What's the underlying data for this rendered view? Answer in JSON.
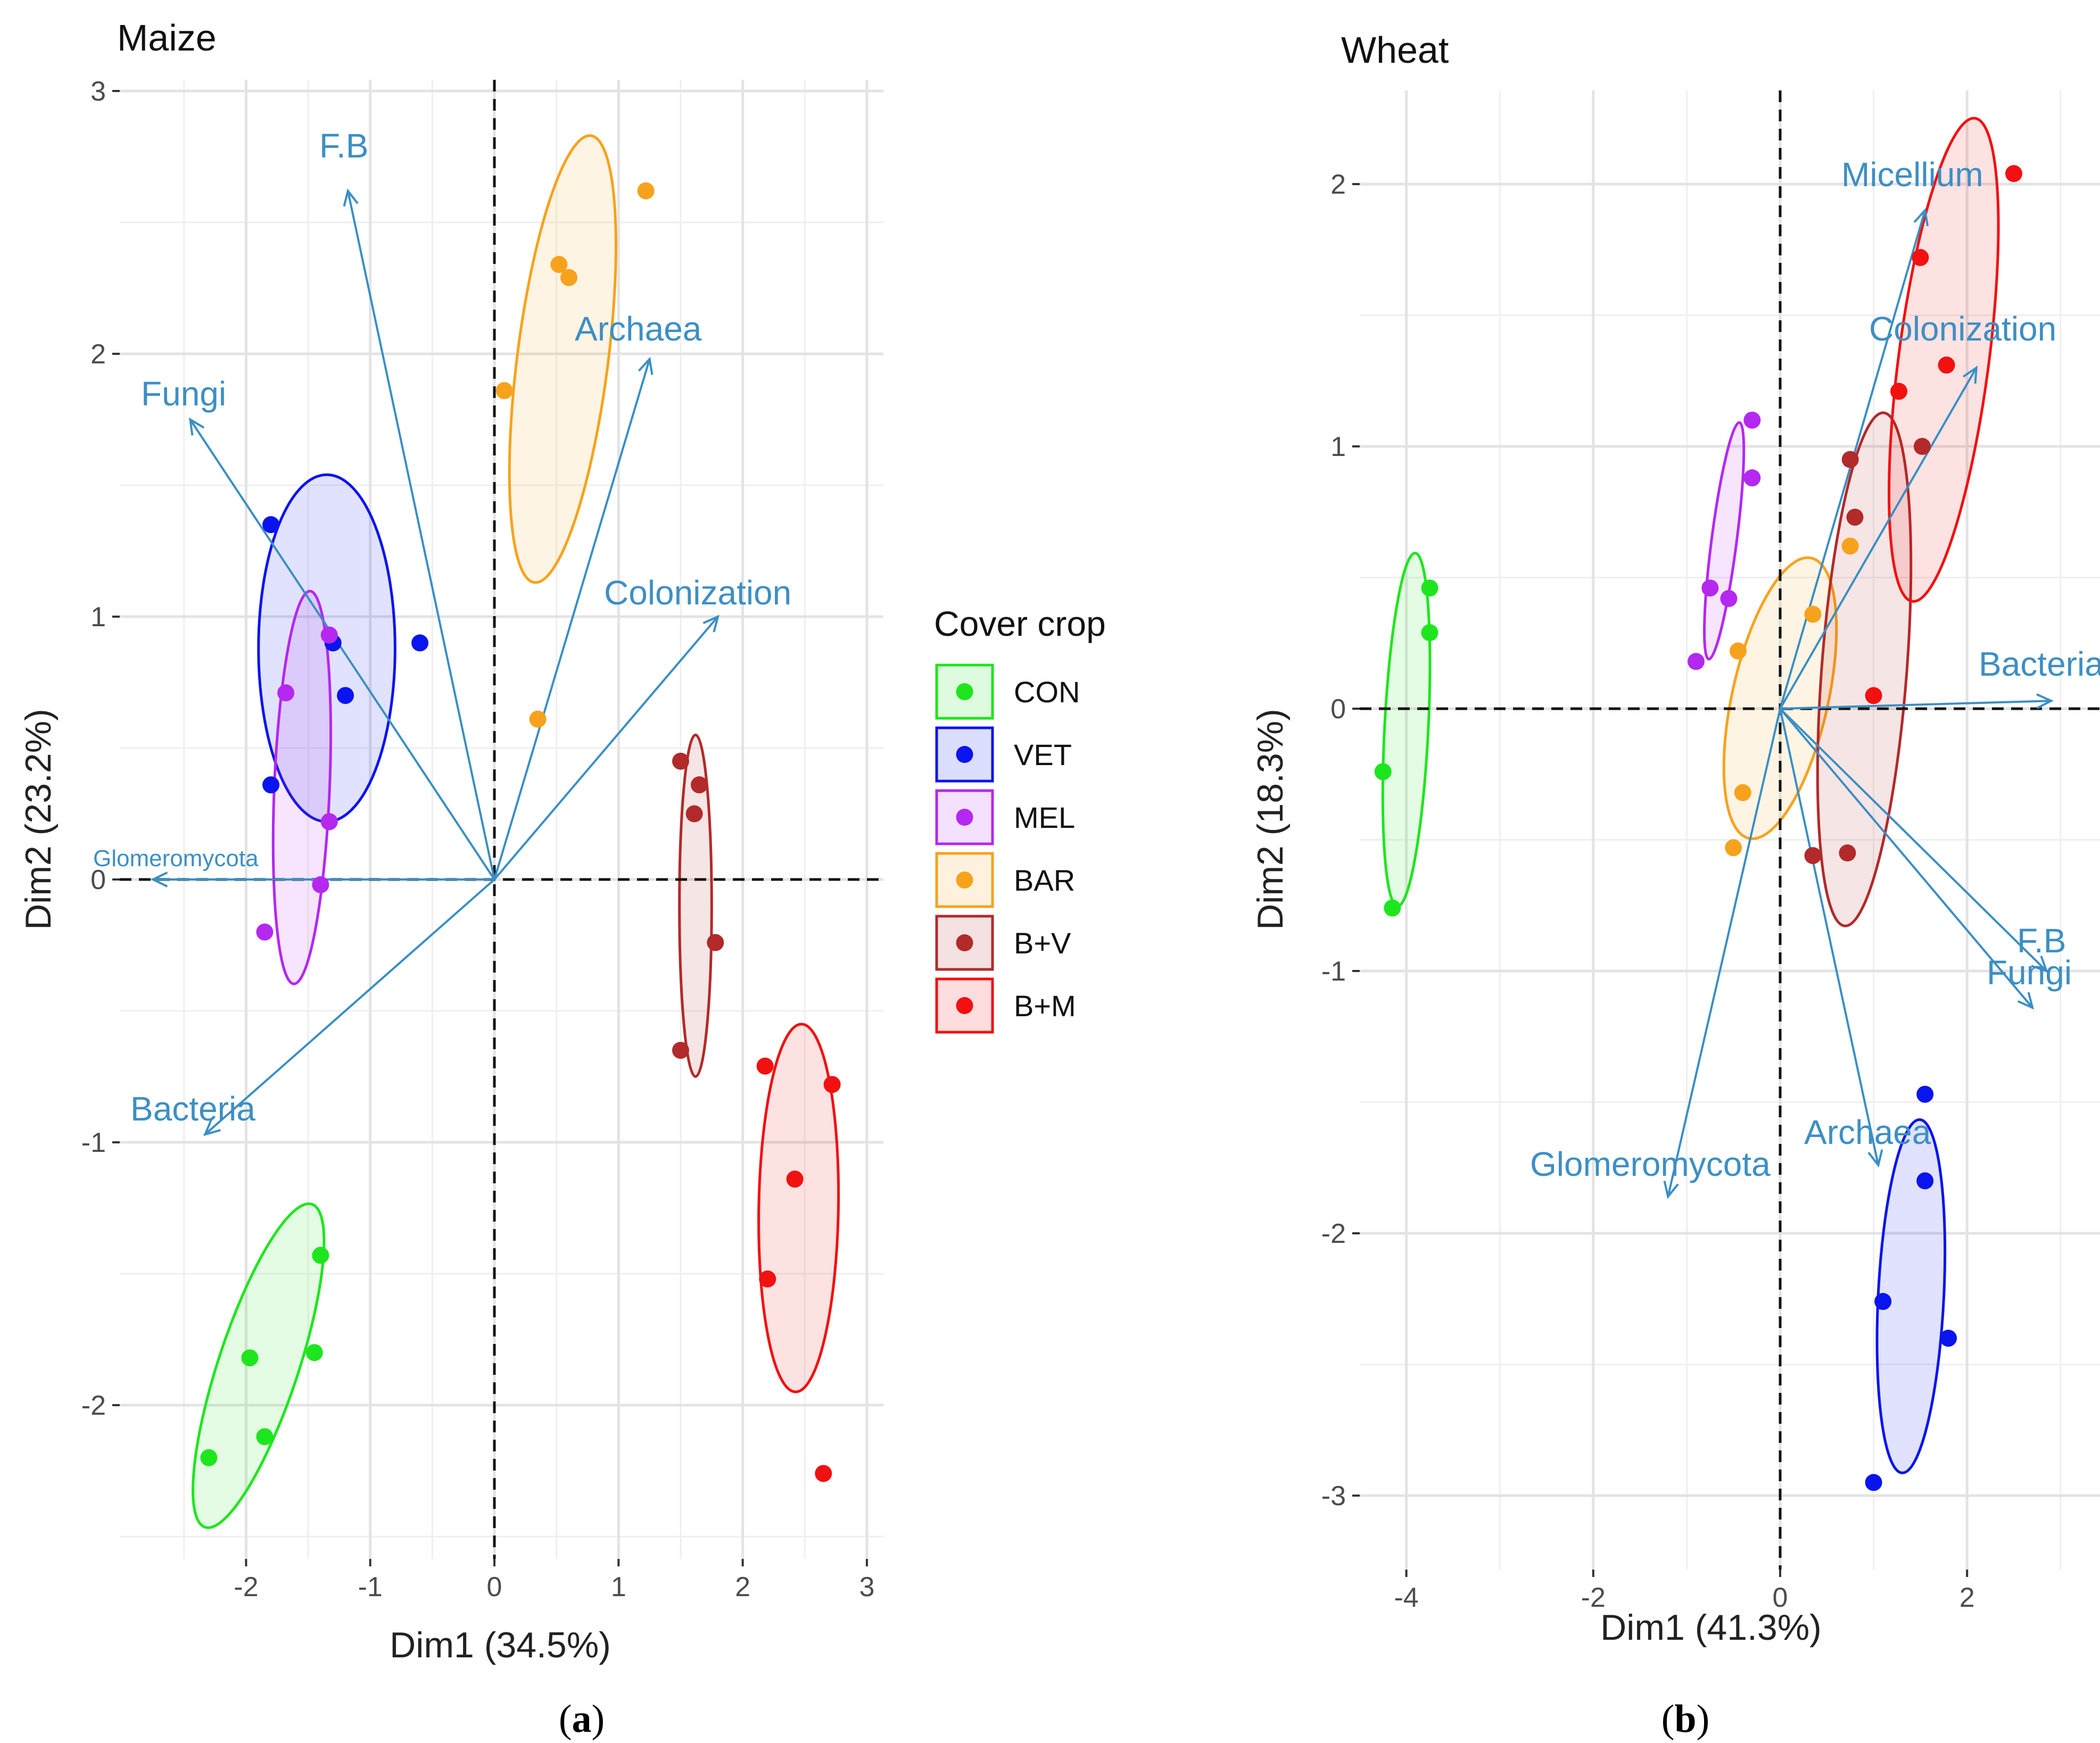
{
  "groups": {
    "CON": "#1ee61e",
    "VET": "#0a14ee",
    "MEL": "#b428f0",
    "BAR": "#f7a21c",
    "B+V": "#b22a2a",
    "B+M": "#f21010"
  },
  "legend": {
    "title": "Cover crop",
    "items": [
      "CON",
      "VET",
      "MEL",
      "BAR",
      "B+V",
      "B+M"
    ]
  },
  "captions": {
    "a": "a",
    "b": "b"
  },
  "chart_data": [
    {
      "type": "scatter",
      "subtype": "pca_biplot",
      "id": "a",
      "title": "Maize",
      "xlabel": "Dim1 (34.5%)",
      "ylabel": "Dim2 (23.2%)",
      "xlim": [
        -3.0,
        3.05
      ],
      "ylim": [
        -2.5,
        3.05
      ],
      "xticks": [
        -2,
        -1,
        0,
        1,
        2,
        3
      ],
      "yticks": [
        -2,
        -1,
        0,
        1,
        2,
        3
      ],
      "xtick_labels": [
        "-2",
        "-1",
        "0",
        "1",
        "2",
        "3"
      ],
      "ytick_labels": [
        "-2",
        "-1",
        "0",
        "1",
        "2",
        "3"
      ],
      "grid": true,
      "points": [
        {
          "g": "CON",
          "x": -1.4,
          "y": -1.43
        },
        {
          "g": "CON",
          "x": -1.97,
          "y": -1.82
        },
        {
          "g": "CON",
          "x": -1.45,
          "y": -1.8
        },
        {
          "g": "CON",
          "x": -1.85,
          "y": -2.12
        },
        {
          "g": "CON",
          "x": -2.3,
          "y": -2.2
        },
        {
          "g": "VET",
          "x": -1.8,
          "y": 1.35
        },
        {
          "g": "VET",
          "x": -1.3,
          "y": 0.9
        },
        {
          "g": "VET",
          "x": -1.2,
          "y": 0.7
        },
        {
          "g": "VET",
          "x": -0.6,
          "y": 0.9
        },
        {
          "g": "VET",
          "x": -1.8,
          "y": 0.36
        },
        {
          "g": "MEL",
          "x": -1.33,
          "y": 0.93
        },
        {
          "g": "MEL",
          "x": -1.68,
          "y": 0.71
        },
        {
          "g": "MEL",
          "x": -1.33,
          "y": 0.22
        },
        {
          "g": "MEL",
          "x": -1.4,
          "y": -0.02
        },
        {
          "g": "MEL",
          "x": -1.85,
          "y": -0.2
        },
        {
          "g": "BAR",
          "x": 1.22,
          "y": 2.62
        },
        {
          "g": "BAR",
          "x": 0.52,
          "y": 2.34
        },
        {
          "g": "BAR",
          "x": 0.6,
          "y": 2.29
        },
        {
          "g": "BAR",
          "x": 0.08,
          "y": 1.86
        },
        {
          "g": "BAR",
          "x": 0.35,
          "y": 0.61
        },
        {
          "g": "B+V",
          "x": 1.5,
          "y": 0.45
        },
        {
          "g": "B+V",
          "x": 1.65,
          "y": 0.36
        },
        {
          "g": "B+V",
          "x": 1.61,
          "y": 0.25
        },
        {
          "g": "B+V",
          "x": 1.78,
          "y": -0.24
        },
        {
          "g": "B+V",
          "x": 1.5,
          "y": -0.65
        },
        {
          "g": "B+M",
          "x": 2.18,
          "y": -0.71
        },
        {
          "g": "B+M",
          "x": 2.72,
          "y": -0.78
        },
        {
          "g": "B+M",
          "x": 2.42,
          "y": -1.14
        },
        {
          "g": "B+M",
          "x": 2.2,
          "y": -1.52
        },
        {
          "g": "B+M",
          "x": 2.65,
          "y": -2.26
        }
      ],
      "ellipses": [
        {
          "g": "CON",
          "cx": -1.9,
          "cy": -1.85,
          "rx": 0.75,
          "ry": 0.22,
          "angle": 55
        },
        {
          "g": "VET",
          "cx": -1.35,
          "cy": 0.88,
          "rx": 0.55,
          "ry": 0.66,
          "angle": 0
        },
        {
          "g": "MEL",
          "cx": -1.55,
          "cy": 0.35,
          "rx": 0.75,
          "ry": 0.22,
          "angle": 85
        },
        {
          "g": "BAR",
          "cx": 0.55,
          "cy": 1.98,
          "rx": 0.88,
          "ry": 0.33,
          "angle": 75
        },
        {
          "g": "B+V",
          "cx": 1.62,
          "cy": -0.1,
          "rx": 0.65,
          "ry": 0.13,
          "angle": 90
        },
        {
          "g": "B+M",
          "cx": 2.45,
          "cy": -1.25,
          "rx": 0.7,
          "ry": 0.32,
          "angle": 88
        }
      ],
      "vectors": [
        {
          "name": "F.B",
          "x": -1.18,
          "y": 2.62
        },
        {
          "name": "Archaea",
          "x": 1.25,
          "y": 1.98
        },
        {
          "name": "Fungi",
          "x": -2.45,
          "y": 1.75
        },
        {
          "name": "Colonization",
          "x": 1.8,
          "y": 1.0
        },
        {
          "name": "Glomeromycota",
          "x": -2.75,
          "y": 0.0
        },
        {
          "name": "Bacteria",
          "x": -2.33,
          "y": -0.97
        }
      ]
    },
    {
      "type": "scatter",
      "subtype": "pca_biplot",
      "id": "b",
      "title": "Wheat",
      "xlabel": "Dim1 (41.3%)",
      "ylabel": "Dim2 (18.3%)",
      "xlim": [
        -4.7,
        3.1
      ],
      "ylim": [
        -3.25,
        2.25
      ],
      "xticks": [
        -4,
        -2,
        0,
        2
      ],
      "yticks": [
        -3,
        -2,
        -1,
        0,
        1,
        2
      ],
      "xtick_labels": [
        "-4",
        "-2",
        "0",
        "2"
      ],
      "ytick_labels": [
        "-3",
        "-2",
        "-1",
        "0",
        "1",
        "2"
      ],
      "grid": true,
      "points": [
        {
          "g": "CON",
          "x": -3.75,
          "y": 0.46
        },
        {
          "g": "CON",
          "x": -3.75,
          "y": 0.29
        },
        {
          "g": "CON",
          "x": -4.25,
          "y": -0.24
        },
        {
          "g": "CON",
          "x": -4.15,
          "y": -0.76
        },
        {
          "g": "VET",
          "x": 1.55,
          "y": -1.47
        },
        {
          "g": "VET",
          "x": 1.55,
          "y": -1.8
        },
        {
          "g": "VET",
          "x": 1.1,
          "y": -2.26
        },
        {
          "g": "VET",
          "x": 1.8,
          "y": -2.4
        },
        {
          "g": "VET",
          "x": 1.0,
          "y": -2.95
        },
        {
          "g": "MEL",
          "x": -0.3,
          "y": 1.1
        },
        {
          "g": "MEL",
          "x": -0.3,
          "y": 0.88
        },
        {
          "g": "MEL",
          "x": -0.75,
          "y": 0.46
        },
        {
          "g": "MEL",
          "x": -0.55,
          "y": 0.42
        },
        {
          "g": "MEL",
          "x": -0.9,
          "y": 0.18
        },
        {
          "g": "BAR",
          "x": 0.75,
          "y": 0.62
        },
        {
          "g": "BAR",
          "x": 0.35,
          "y": 0.36
        },
        {
          "g": "BAR",
          "x": -0.45,
          "y": 0.22
        },
        {
          "g": "BAR",
          "x": -0.4,
          "y": -0.32
        },
        {
          "g": "BAR",
          "x": -0.5,
          "y": -0.53
        },
        {
          "g": "B+V",
          "x": 1.52,
          "y": 1.0
        },
        {
          "g": "B+V",
          "x": 0.75,
          "y": 0.95
        },
        {
          "g": "B+V",
          "x": 0.8,
          "y": 0.73
        },
        {
          "g": "B+V",
          "x": 0.35,
          "y": -0.56
        },
        {
          "g": "B+V",
          "x": 0.72,
          "y": -0.55
        },
        {
          "g": "B+M",
          "x": 2.5,
          "y": 2.04
        },
        {
          "g": "B+M",
          "x": 1.5,
          "y": 1.72
        },
        {
          "g": "B+M",
          "x": 1.78,
          "y": 1.31
        },
        {
          "g": "B+M",
          "x": 1.27,
          "y": 1.21
        },
        {
          "g": "B+M",
          "x": 1.0,
          "y": 0.05
        }
      ],
      "ellipses": [
        {
          "g": "CON",
          "cx": -4.0,
          "cy": -0.08,
          "rx": 0.68,
          "ry": 0.22,
          "angle": 82
        },
        {
          "g": "VET",
          "cx": 1.4,
          "cy": -2.24,
          "rx": 0.68,
          "ry": 0.33,
          "angle": 82
        },
        {
          "g": "MEL",
          "cx": -0.6,
          "cy": 0.64,
          "rx": 0.48,
          "ry": 0.1,
          "angle": 70
        },
        {
          "g": "BAR",
          "cx": 0.0,
          "cy": 0.04,
          "rx": 0.63,
          "ry": 0.3,
          "angle": 58
        },
        {
          "g": "B+V",
          "cx": 0.9,
          "cy": 0.15,
          "rx": 1.0,
          "ry": 0.4,
          "angle": 78
        },
        {
          "g": "B+M",
          "cx": 1.75,
          "cy": 1.33,
          "rx": 0.98,
          "ry": 0.36,
          "angle": 70
        }
      ],
      "vectors": [
        {
          "name": "Micellium",
          "x": 1.55,
          "y": 1.9
        },
        {
          "name": "Colonization",
          "x": 2.1,
          "y": 1.3
        },
        {
          "name": "Bacteria",
          "x": 2.9,
          "y": 0.03
        },
        {
          "name": "F.B",
          "x": 2.85,
          "y": -1.0
        },
        {
          "name": "Fungi",
          "x": 2.7,
          "y": -1.14
        },
        {
          "name": "Archaea",
          "x": 1.05,
          "y": -1.74
        },
        {
          "name": "Glomeromycota",
          "x": -1.2,
          "y": -1.86
        }
      ]
    }
  ]
}
